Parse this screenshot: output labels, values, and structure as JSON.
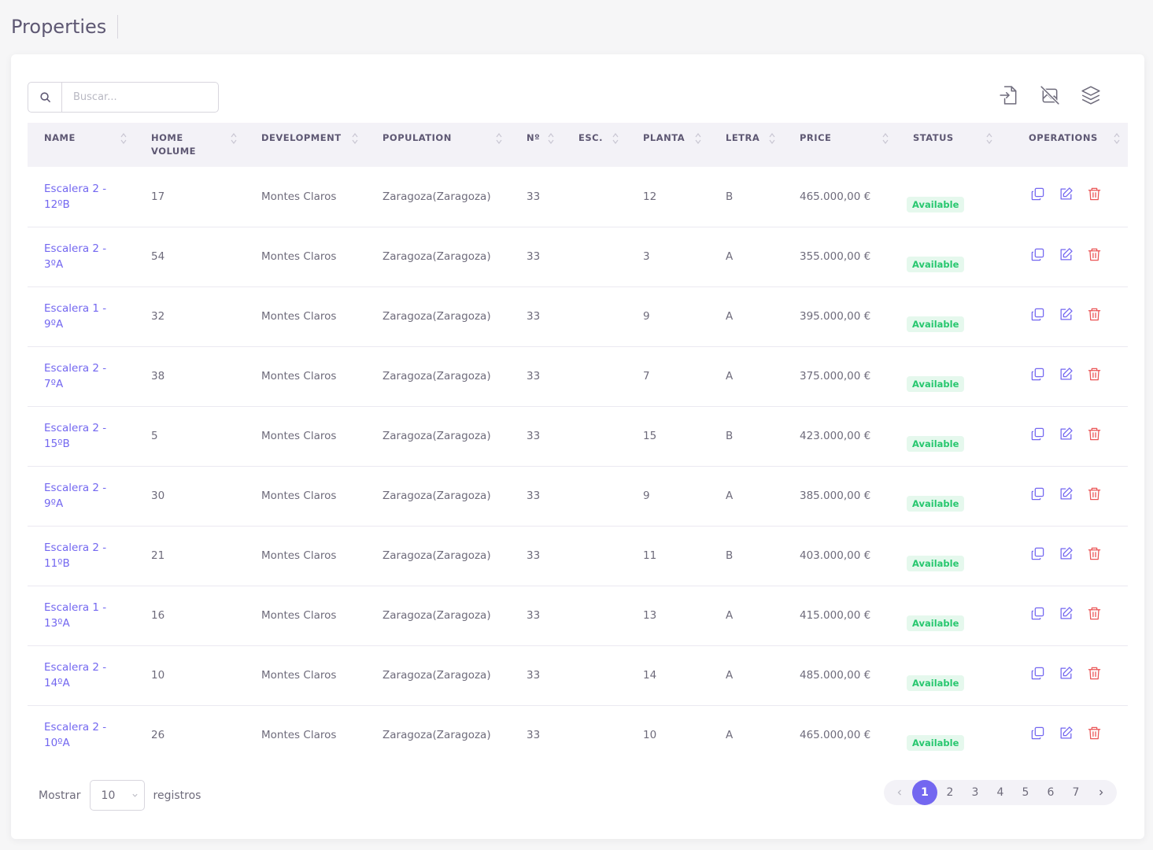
{
  "page": {
    "title": "Properties"
  },
  "search": {
    "placeholder": "Buscar..."
  },
  "toolbar": {
    "icons": [
      "import-icon",
      "hide-images-icon",
      "layers-icon"
    ]
  },
  "table": {
    "headers": [
      "NAME",
      "HOME VOLUME",
      "DEVELOPMENT",
      "POPULATION",
      "Nº",
      "ESC.",
      "PLANTA",
      "LETRA",
      "PRICE",
      "STATUS",
      "OPERATIONS"
    ],
    "rows": [
      {
        "name_l1": "Escalera 2 -",
        "name_l2": "12ºB",
        "volume": "17",
        "development": "Montes Claros",
        "population": "Zaragoza(Zaragoza)",
        "num": "33",
        "esc": "",
        "planta": "12",
        "letra": "B",
        "price": "465.000,00 €",
        "status": "Available"
      },
      {
        "name_l1": "Escalera 2 -",
        "name_l2": "3ºA",
        "volume": "54",
        "development": "Montes Claros",
        "population": "Zaragoza(Zaragoza)",
        "num": "33",
        "esc": "",
        "planta": "3",
        "letra": "A",
        "price": "355.000,00 €",
        "status": "Available"
      },
      {
        "name_l1": "Escalera 1 -",
        "name_l2": "9ºA",
        "volume": "32",
        "development": "Montes Claros",
        "population": "Zaragoza(Zaragoza)",
        "num": "33",
        "esc": "",
        "planta": "9",
        "letra": "A",
        "price": "395.000,00 €",
        "status": "Available"
      },
      {
        "name_l1": "Escalera 2 -",
        "name_l2": "7ºA",
        "volume": "38",
        "development": "Montes Claros",
        "population": "Zaragoza(Zaragoza)",
        "num": "33",
        "esc": "",
        "planta": "7",
        "letra": "A",
        "price": "375.000,00 €",
        "status": "Available"
      },
      {
        "name_l1": "Escalera 2 -",
        "name_l2": "15ºB",
        "volume": "5",
        "development": "Montes Claros",
        "population": "Zaragoza(Zaragoza)",
        "num": "33",
        "esc": "",
        "planta": "15",
        "letra": "B",
        "price": "423.000,00 €",
        "status": "Available"
      },
      {
        "name_l1": "Escalera 2 -",
        "name_l2": "9ºA",
        "volume": "30",
        "development": "Montes Claros",
        "population": "Zaragoza(Zaragoza)",
        "num": "33",
        "esc": "",
        "planta": "9",
        "letra": "A",
        "price": "385.000,00 €",
        "status": "Available"
      },
      {
        "name_l1": "Escalera 2 -",
        "name_l2": "11ºB",
        "volume": "21",
        "development": "Montes Claros",
        "population": "Zaragoza(Zaragoza)",
        "num": "33",
        "esc": "",
        "planta": "11",
        "letra": "B",
        "price": "403.000,00 €",
        "status": "Available"
      },
      {
        "name_l1": "Escalera 1 -",
        "name_l2": "13ºA",
        "volume": "16",
        "development": "Montes Claros",
        "population": "Zaragoza(Zaragoza)",
        "num": "33",
        "esc": "",
        "planta": "13",
        "letra": "A",
        "price": "415.000,00 €",
        "status": "Available"
      },
      {
        "name_l1": "Escalera 2 -",
        "name_l2": "14ºA",
        "volume": "10",
        "development": "Montes Claros",
        "population": "Zaragoza(Zaragoza)",
        "num": "33",
        "esc": "",
        "planta": "14",
        "letra": "A",
        "price": "485.000,00 €",
        "status": "Available"
      },
      {
        "name_l1": "Escalera 2 -",
        "name_l2": "10ºA",
        "volume": "26",
        "development": "Montes Claros",
        "population": "Zaragoza(Zaragoza)",
        "num": "33",
        "esc": "",
        "planta": "10",
        "letra": "A",
        "price": "465.000,00 €",
        "status": "Available"
      }
    ]
  },
  "footer": {
    "show_label": "Mostrar",
    "page_size": "10",
    "records_label": "registros",
    "pages": [
      "1",
      "2",
      "3",
      "4",
      "5",
      "6",
      "7"
    ],
    "current_page": "1"
  },
  "colors": {
    "accent": "#7367f0",
    "success": "#28c76f",
    "danger": "#ea5455"
  }
}
